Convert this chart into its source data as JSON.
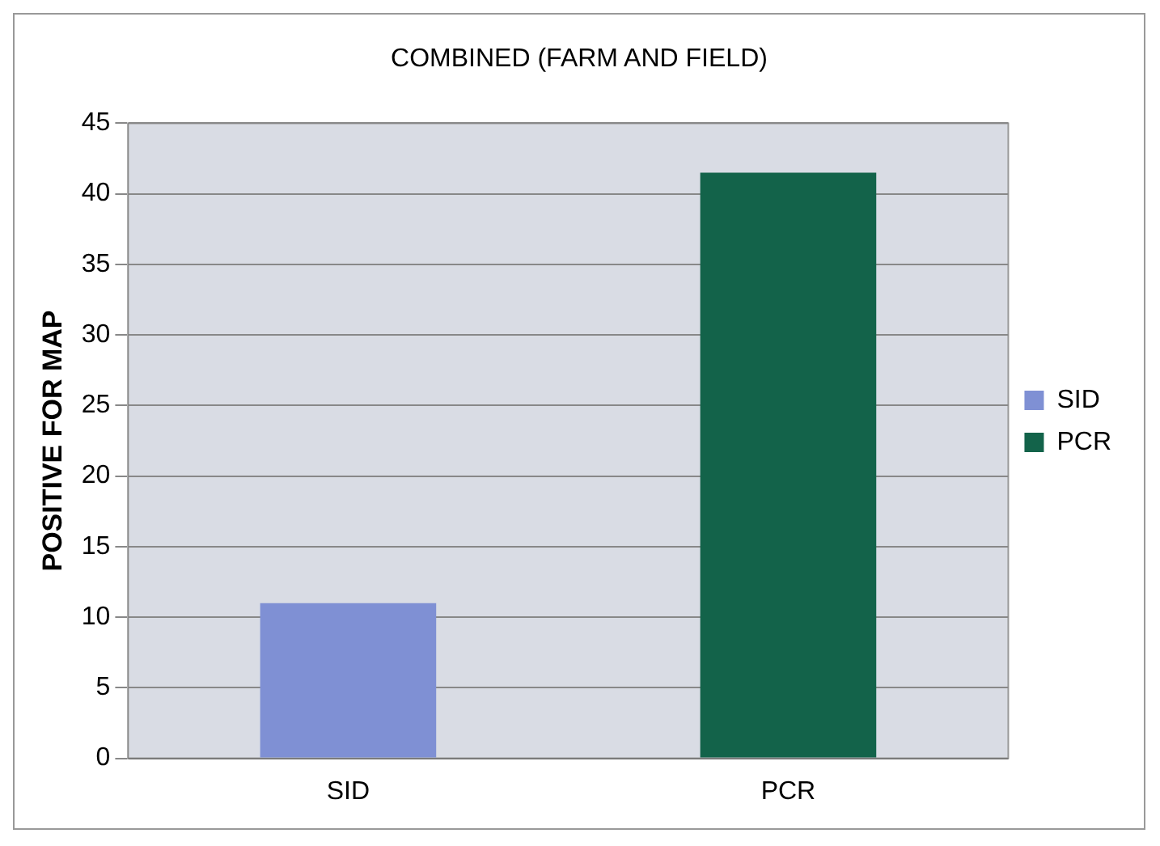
{
  "chart_data": {
    "type": "bar",
    "title": "COMBINED (FARM AND FIELD)",
    "ylabel": "POSITIVE FOR MAP",
    "categories": [
      "SID",
      "PCR"
    ],
    "series": [
      {
        "name": "SID",
        "color": "#7f90d4",
        "values": [
          11,
          null
        ]
      },
      {
        "name": "PCR",
        "color": "#13634a",
        "values": [
          null,
          41.5
        ]
      }
    ],
    "ylim": [
      0,
      45
    ],
    "yticks": [
      0,
      5,
      10,
      15,
      20,
      25,
      30,
      35,
      40,
      45
    ],
    "grid": "y",
    "legend": "right"
  }
}
